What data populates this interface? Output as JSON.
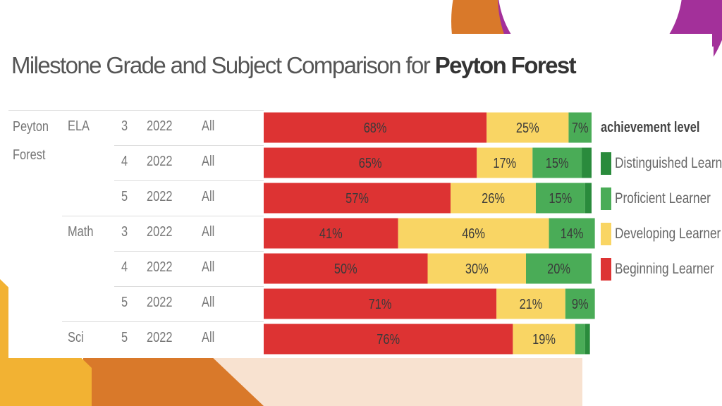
{
  "chart_data": {
    "type": "bar",
    "orientation": "horizontal",
    "stacked": true,
    "title": {
      "prefix": "Milestone Grade and Subject Comparison for ",
      "name": "Peyton Forest"
    },
    "school": "Peyton Forest",
    "rows": [
      {
        "school": "Peyton Forest",
        "subject": "ELA",
        "grade": "3",
        "year": "2022",
        "group": "All",
        "values": [
          68,
          25,
          7,
          0
        ],
        "labels": [
          "68%",
          "25%",
          "7%",
          ""
        ]
      },
      {
        "school": "",
        "subject": "",
        "grade": "4",
        "year": "2022",
        "group": "All",
        "values": [
          65,
          17,
          15,
          3
        ],
        "labels": [
          "65%",
          "17%",
          "15%",
          ""
        ]
      },
      {
        "school": "",
        "subject": "",
        "grade": "5",
        "year": "2022",
        "group": "All",
        "values": [
          57,
          26,
          15,
          2
        ],
        "labels": [
          "57%",
          "26%",
          "15%",
          ""
        ]
      },
      {
        "school": "",
        "subject": "Math",
        "grade": "3",
        "year": "2022",
        "group": "All",
        "values": [
          41,
          46,
          14,
          0
        ],
        "labels": [
          "41%",
          "46%",
          "14%",
          ""
        ]
      },
      {
        "school": "",
        "subject": "",
        "grade": "4",
        "year": "2022",
        "group": "All",
        "values": [
          50,
          30,
          20,
          0
        ],
        "labels": [
          "50%",
          "30%",
          "20%",
          ""
        ]
      },
      {
        "school": "",
        "subject": "",
        "grade": "5",
        "year": "2022",
        "group": "All",
        "values": [
          71,
          21,
          9,
          0
        ],
        "labels": [
          "71%",
          "21%",
          "9%",
          ""
        ]
      },
      {
        "school": "",
        "subject": "Sci",
        "grade": "5",
        "year": "2022",
        "group": "All",
        "values": [
          76,
          19,
          3,
          1.5
        ],
        "labels": [
          "76%",
          "19%",
          "",
          ""
        ]
      }
    ],
    "series_order": [
      "Beginning Learner",
      "Developing Learner",
      "Proficient Learner",
      "Distinguished Learner"
    ],
    "series_colors": {
      "Beginning Learner": "#dd3333",
      "Developing Learner": "#f9d564",
      "Proficient Learner": "#4aac57",
      "Distinguished Learner": "#2a8b3c"
    },
    "xlim": [
      0,
      100
    ],
    "legend": {
      "title": "achievement level",
      "placement": "right",
      "items": [
        {
          "label": "Distinguished Learner",
          "color": "#2a8b3c"
        },
        {
          "label": "Proficient Learner",
          "color": "#4aac57"
        },
        {
          "label": "Developing Learner",
          "color": "#f9d564"
        },
        {
          "label": "Beginning Learner",
          "color": "#dd3333"
        }
      ]
    }
  },
  "decor_colors": {
    "orange": "#d9792a",
    "purple": "#a3309a",
    "yellow": "#f2b233",
    "peach": "#f8e2d0"
  }
}
